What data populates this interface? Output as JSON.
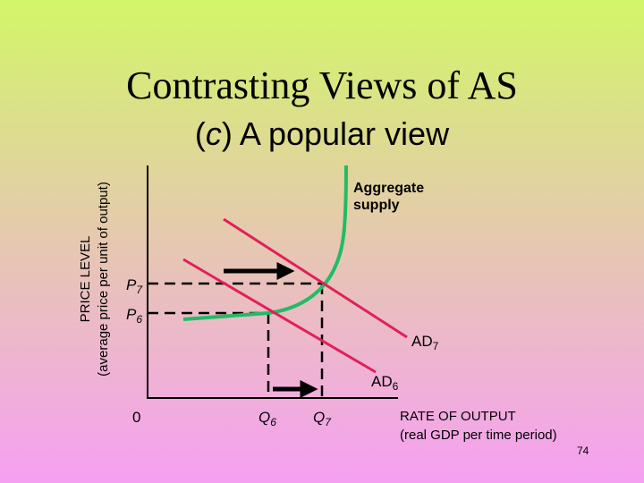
{
  "title": "Contrasting Views of  AS",
  "subtitle": {
    "open": "(",
    "letter": "c",
    "rest": ") A popular view"
  },
  "y_axis_label": {
    "line1": "PRICE LEVEL",
    "line2": "(average price per unit of output)"
  },
  "x_axis_label": {
    "line1": "RATE OF OUTPUT",
    "line2": "(real GDP per time period)"
  },
  "origin": "0",
  "curve_labels": {
    "aggregate_supply": {
      "line1": "Aggregate",
      "line2": "supply"
    },
    "ad7": {
      "main": "AD",
      "sub": "7"
    },
    "ad6": {
      "main": "AD",
      "sub": "6"
    }
  },
  "price_labels": {
    "p7": {
      "main": "P",
      "sub": "7"
    },
    "p6": {
      "main": "P",
      "sub": "6"
    }
  },
  "quantity_labels": {
    "q6": {
      "main": "Q",
      "sub": "6"
    },
    "q7": {
      "main": "Q",
      "sub": "7"
    }
  },
  "page_number": "74"
}
